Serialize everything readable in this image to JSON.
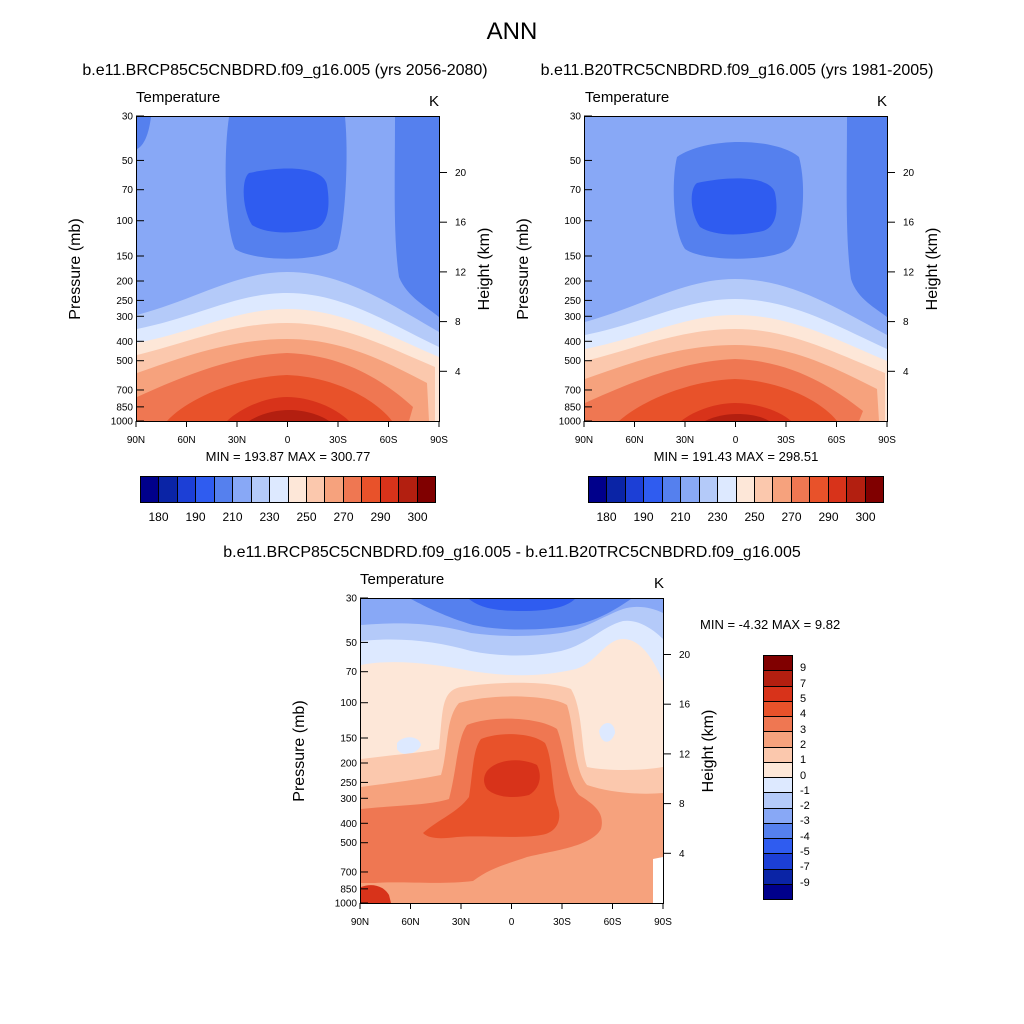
{
  "page": {
    "title": "ANN"
  },
  "panel_left": {
    "title": "b.e11.BRCP85C5CNBDRD.f09_g16.005 (yrs 2056-2080)",
    "variable": "Temperature",
    "units": "K",
    "ylabel": "Pressure (mb)",
    "ylabel_right": "Height (km)",
    "minmax": "MIN = 193.87  MAX = 300.77"
  },
  "panel_right": {
    "title": "b.e11.B20TRC5CNBDRD.f09_g16.005 (yrs 1981-2005)",
    "variable": "Temperature",
    "units": "K",
    "ylabel": "Pressure (mb)",
    "ylabel_right": "Height (km)",
    "minmax": "MIN = 191.43  MAX = 298.51"
  },
  "panel_diff": {
    "title": "b.e11.BRCP85C5CNBDRD.f09_g16.005 - b.e11.B20TRC5CNBDRD.f09_g16.005",
    "variable": "Temperature",
    "units": "K",
    "ylabel": "Pressure (mb)",
    "ylabel_right": "Height (km)",
    "minmax": "MIN =  -4.32  MAX =   9.82"
  },
  "axes": {
    "pressure_ticks": [
      "30",
      "50",
      "70",
      "100",
      "150",
      "200",
      "250",
      "300",
      "400",
      "500",
      "700",
      "850",
      "1000"
    ],
    "height_ticks": [
      "20",
      "16",
      "12",
      "8",
      "4"
    ],
    "lat_ticks": [
      "90N",
      "60N",
      "30N",
      "0",
      "30S",
      "60S",
      "90S"
    ]
  },
  "colorbar_temp": {
    "labels": [
      "180",
      "190",
      "210",
      "230",
      "250",
      "270",
      "290",
      "300"
    ],
    "colors": [
      "#00008b",
      "#0a24a6",
      "#1c3fd6",
      "#2f5cf0",
      "#5580ee",
      "#88a8f6",
      "#b4caf9",
      "#dde9ff",
      "#fde7d8",
      "#fbc8ad",
      "#f6a27d",
      "#ef7752",
      "#e8522a",
      "#d8331a",
      "#b31f10",
      "#800000"
    ]
  },
  "colorbar_diff": {
    "labels": [
      "9",
      "7",
      "5",
      "4",
      "3",
      "2",
      "1",
      "0",
      "-1",
      "-2",
      "-3",
      "-4",
      "-5",
      "-7",
      "-9"
    ],
    "colors": [
      "#800000",
      "#b31f10",
      "#d8331a",
      "#e8522a",
      "#ef7752",
      "#f6a27d",
      "#fbc8ad",
      "#fde7d8",
      "#dde9ff",
      "#b4caf9",
      "#88a8f6",
      "#5580ee",
      "#2f5cf0",
      "#1c3fd6",
      "#0a24a6",
      "#00008b"
    ]
  },
  "chart_data": [
    {
      "type": "heatmap",
      "title": "b.e11.BRCP85C5CNBDRD.f09_g16.005 (yrs 2056-2080)",
      "variable": "Temperature",
      "units": "K",
      "xlabel": "",
      "ylabel": "Pressure (mb)",
      "ylabel_right": "Height (km)",
      "x_ticks": [
        "90N",
        "60N",
        "30N",
        "0",
        "30S",
        "60S",
        "90S"
      ],
      "y_ticks": [
        30,
        50,
        70,
        100,
        150,
        200,
        250,
        300,
        400,
        500,
        700,
        850,
        1000
      ],
      "y_scale": "log",
      "ylim": [
        1000,
        30
      ],
      "min": 193.87,
      "max": 300.77,
      "contour_levels": [
        180,
        185,
        190,
        200,
        210,
        220,
        230,
        240,
        250,
        260,
        270,
        280,
        290,
        295,
        300
      ]
    },
    {
      "type": "heatmap",
      "title": "b.e11.B20TRC5CNBDRD.f09_g16.005 (yrs 1981-2005)",
      "variable": "Temperature",
      "units": "K",
      "xlabel": "",
      "ylabel": "Pressure (mb)",
      "ylabel_right": "Height (km)",
      "x_ticks": [
        "90N",
        "60N",
        "30N",
        "0",
        "30S",
        "60S",
        "90S"
      ],
      "y_ticks": [
        30,
        50,
        70,
        100,
        150,
        200,
        250,
        300,
        400,
        500,
        700,
        850,
        1000
      ],
      "y_scale": "log",
      "ylim": [
        1000,
        30
      ],
      "min": 191.43,
      "max": 298.51,
      "contour_levels": [
        180,
        185,
        190,
        200,
        210,
        220,
        230,
        240,
        250,
        260,
        270,
        280,
        290,
        295,
        300
      ]
    },
    {
      "type": "heatmap",
      "title": "b.e11.BRCP85C5CNBDRD.f09_g16.005 - b.e11.B20TRC5CNBDRD.f09_g16.005",
      "variable": "Temperature",
      "units": "K",
      "xlabel": "",
      "ylabel": "Pressure (mb)",
      "ylabel_right": "Height (km)",
      "x_ticks": [
        "90N",
        "60N",
        "30N",
        "0",
        "30S",
        "60S",
        "90S"
      ],
      "y_ticks": [
        30,
        50,
        70,
        100,
        150,
        200,
        250,
        300,
        400,
        500,
        700,
        850,
        1000
      ],
      "y_scale": "log",
      "ylim": [
        1000,
        30
      ],
      "min": -4.32,
      "max": 9.82,
      "contour_levels": [
        -9,
        -7,
        -5,
        -4,
        -3,
        -2,
        -1,
        0,
        1,
        2,
        3,
        4,
        5,
        7,
        9
      ]
    }
  ]
}
